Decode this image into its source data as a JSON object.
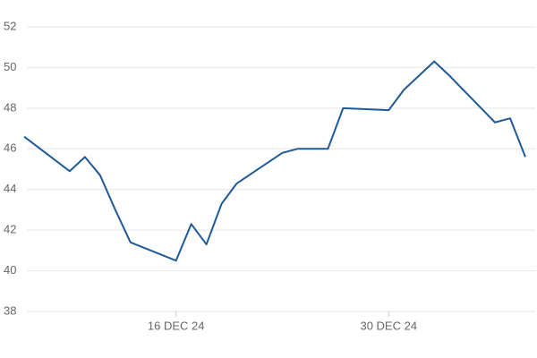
{
  "chart_data": {
    "type": "line",
    "x": [
      "2024-12-06",
      "2024-12-09",
      "2024-12-10",
      "2024-12-11",
      "2024-12-12",
      "2024-12-13",
      "2024-12-16",
      "2024-12-17",
      "2024-12-18",
      "2024-12-19",
      "2024-12-20",
      "2024-12-23",
      "2024-12-24",
      "2024-12-26",
      "2024-12-27",
      "2024-12-30",
      "2024-12-31",
      "2025-01-02",
      "2025-01-03",
      "2025-01-06",
      "2025-01-07",
      "2025-01-08"
    ],
    "values": [
      46.6,
      44.9,
      45.6,
      44.7,
      43.0,
      41.4,
      40.5,
      42.3,
      41.3,
      43.3,
      44.3,
      45.8,
      46.0,
      46.0,
      48.0,
      47.9,
      48.9,
      50.3,
      49.6,
      47.3,
      47.5,
      45.6
    ],
    "color": "#1f5a96",
    "xlim": [
      "2024-12-06",
      "2025-01-08"
    ],
    "xticks": [
      {
        "value": "2024-12-16",
        "label": "16 DEC 24"
      },
      {
        "value": "2024-12-30",
        "label": "30 DEC 24"
      }
    ],
    "ylim": [
      38,
      52
    ],
    "yticks": [
      38,
      40,
      42,
      44,
      46,
      48,
      50,
      52
    ],
    "grid": true
  }
}
